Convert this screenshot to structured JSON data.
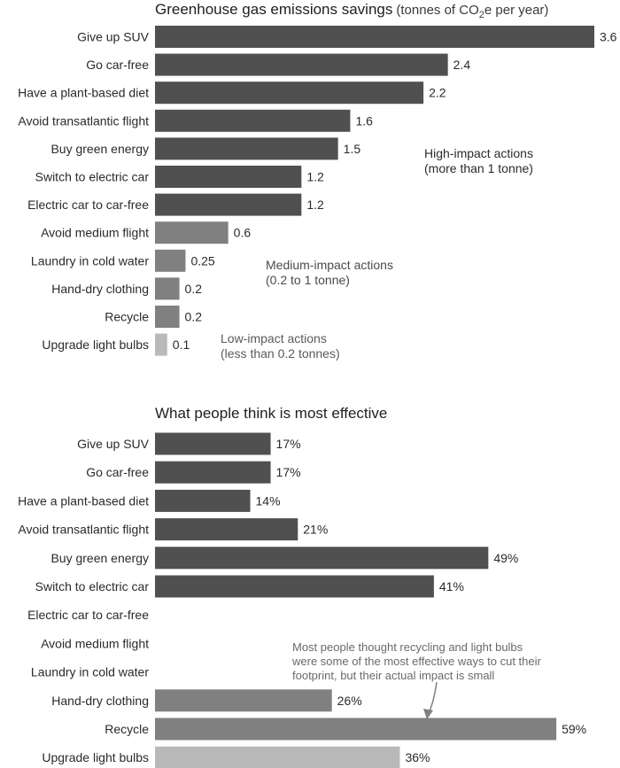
{
  "colors": {
    "high": "#505050",
    "medium": "#808080",
    "low": "#b9b9b9",
    "arrow": "#808080"
  },
  "chart_data": [
    {
      "type": "bar",
      "orientation": "horizontal",
      "title": "Greenhouse gas emissions savings",
      "title_unit_prefix": "(tonnes of CO",
      "title_unit_sub": "2",
      "title_unit_suffix": "e per year)",
      "categories": [
        "Give up SUV",
        "Go car-free",
        "Have a plant-based diet",
        "Avoid transatlantic flight",
        "Buy green energy",
        "Switch to electric car",
        "Electric car to car-free",
        "Avoid medium flight",
        "Laundry in cold water",
        "Hand-dry clothing",
        "Recycle",
        "Upgrade light bulbs"
      ],
      "values": [
        3.6,
        2.4,
        2.2,
        1.6,
        1.5,
        1.2,
        1.2,
        0.6,
        0.25,
        0.2,
        0.2,
        0.1
      ],
      "value_labels": [
        "3.6",
        "2.4",
        "2.2",
        "1.6",
        "1.5",
        "1.2",
        "1.2",
        "0.6",
        "0.25",
        "0.2",
        "0.2",
        "0.1"
      ],
      "impact": [
        "high",
        "high",
        "high",
        "high",
        "high",
        "high",
        "high",
        "medium",
        "medium",
        "medium",
        "medium",
        "low"
      ],
      "xlim": [
        0,
        3.6
      ],
      "annotations": [
        {
          "group": "high",
          "lines": [
            "High-impact actions",
            "(more than 1 tonne)"
          ]
        },
        {
          "group": "medium",
          "lines": [
            "Medium-impact actions",
            "(0.2 to 1 tonne)"
          ]
        },
        {
          "group": "low",
          "lines": [
            "Low-impact actions",
            "(less than 0.2 tonnes)"
          ]
        }
      ]
    },
    {
      "type": "bar",
      "orientation": "horizontal",
      "title": "What people think is most effective",
      "categories": [
        "Give up SUV",
        "Go car-free",
        "Have a plant-based diet",
        "Avoid transatlantic flight",
        "Buy green energy",
        "Switch to electric car",
        "Electric car to car-free",
        "Avoid medium flight",
        "Laundry in cold water",
        "Hand-dry clothing",
        "Recycle",
        "Upgrade light bulbs"
      ],
      "values": [
        17,
        17,
        14,
        21,
        49,
        41,
        null,
        null,
        null,
        26,
        59,
        36
      ],
      "value_labels": [
        "17%",
        "17%",
        "14%",
        "21%",
        "49%",
        "41%",
        "",
        "",
        "",
        "26%",
        "59%",
        "36%"
      ],
      "impact": [
        "high",
        "high",
        "high",
        "high",
        "high",
        "high",
        "high",
        "medium",
        "medium",
        "medium",
        "medium",
        "low"
      ],
      "xlim": [
        0,
        100
      ],
      "note": [
        "Most people thought recycling and light bulbs",
        "were some of the most effective ways to cut their",
        "footprint, but their actual impact is small"
      ]
    }
  ]
}
